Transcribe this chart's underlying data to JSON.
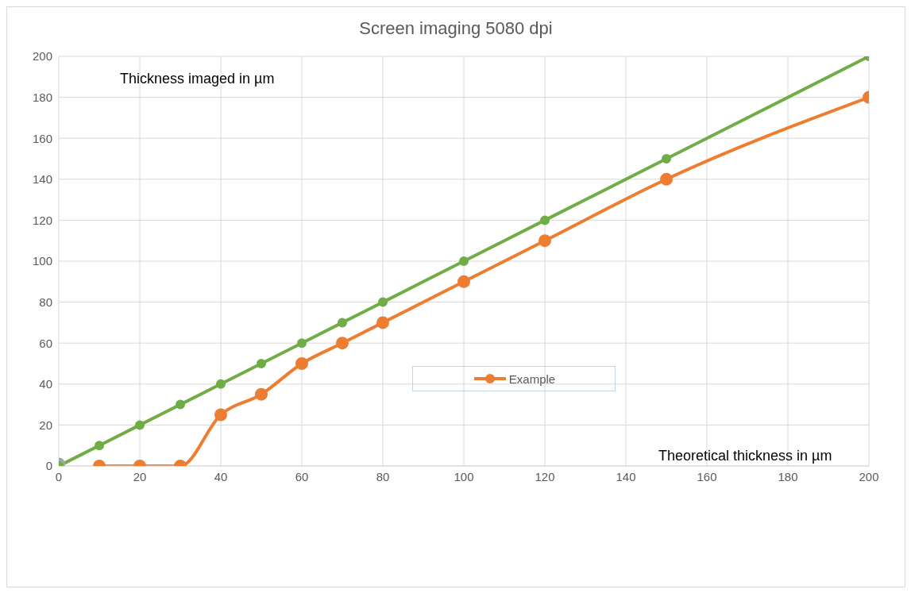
{
  "chart_data": {
    "type": "line",
    "title": "Screen imaging 5080 dpi",
    "xlabel": "Theoretical thickness in µm",
    "ylabel": "Thickness imaged in µm",
    "xlim": [
      0,
      200
    ],
    "xticks": [
      0,
      20,
      40,
      60,
      80,
      100,
      120,
      140,
      160,
      180,
      200
    ],
    "ylim": [
      0,
      200
    ],
    "yticks": [
      0,
      20,
      40,
      60,
      80,
      100,
      120,
      140,
      160,
      180,
      200
    ],
    "grid": true,
    "marker": "circle",
    "legend": "center",
    "series": [
      {
        "color": "#70ad47",
        "x": [
          0,
          10,
          20,
          30,
          40,
          50,
          60,
          70,
          80,
          100,
          120,
          150,
          200
        ],
        "values": [
          0,
          10,
          20,
          30,
          40,
          50,
          60,
          70,
          80,
          100,
          120,
          150,
          200
        ]
      },
      {
        "name": "Example",
        "color": "#ed7d31",
        "x": [
          10,
          20,
          30,
          40,
          50,
          60,
          70,
          80,
          100,
          120,
          150,
          200
        ],
        "values": [
          0,
          0,
          0,
          25,
          35,
          50,
          60,
          70,
          90,
          110,
          140,
          180
        ]
      },
      {
        "type": "scatter",
        "color": "#a5a5a5",
        "x": [
          0
        ],
        "values": [
          1
        ]
      }
    ]
  }
}
